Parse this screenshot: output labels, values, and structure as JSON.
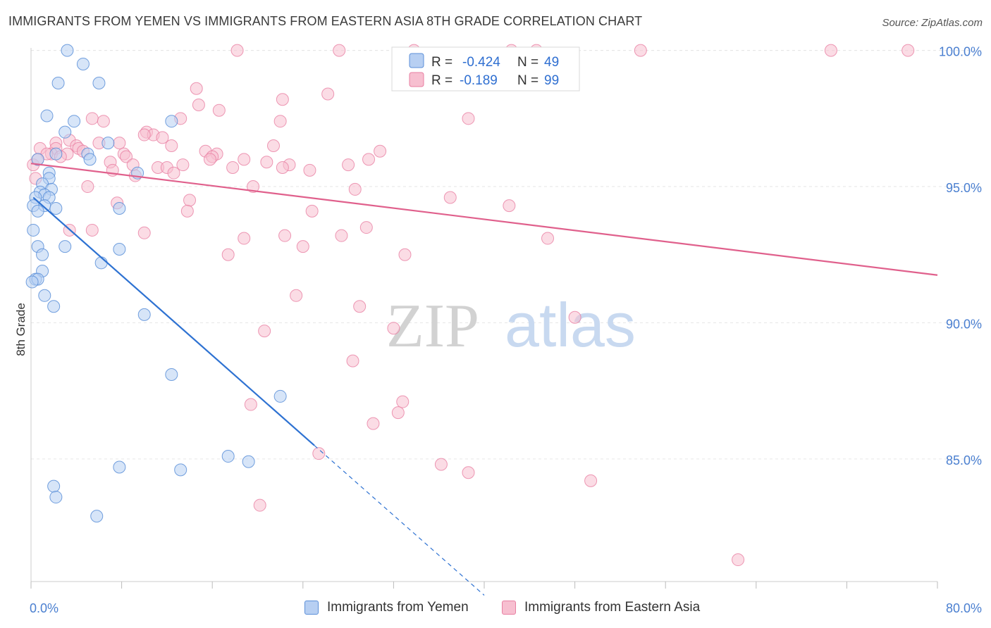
{
  "title": "IMMIGRANTS FROM YEMEN VS IMMIGRANTS FROM EASTERN ASIA 8TH GRADE CORRELATION CHART",
  "source": "Source: ZipAtlas.com",
  "watermark": {
    "zip": "ZIP",
    "atlas": "atlas"
  },
  "colors": {
    "yemen_fill": "#b7cff2",
    "yemen_stroke": "#5b8fd8",
    "yemen_line": "#2e72d2",
    "asia_fill": "#f7bfd0",
    "asia_stroke": "#e87fa2",
    "asia_line": "#e0608c",
    "axis_label": "#4a7fd0",
    "grid": "#e6e6e6"
  },
  "legend_top": {
    "rows": [
      {
        "r_label": "R =",
        "r_value": "-0.424",
        "n_label": "N =",
        "n_value": "49"
      },
      {
        "r_label": "R =",
        "r_value": "-0.189",
        "n_label": "N =",
        "n_value": "99"
      }
    ]
  },
  "legend_bottom": {
    "yemen": "Immigrants from Yemen",
    "asia": "Immigrants from Eastern Asia"
  },
  "chart_data": {
    "type": "scatter",
    "xlabel": "",
    "ylabel": "8th Grade",
    "xlim": [
      0,
      80
    ],
    "ylim": [
      80.5,
      100.3
    ],
    "x_tick_labels": [
      "0.0%",
      "80.0%"
    ],
    "y_ticks": [
      85,
      90,
      95,
      100
    ],
    "y_tick_labels": [
      "85.0%",
      "90.0%",
      "95.0%",
      "100.0%"
    ],
    "grid": true,
    "legend_position": "top-center",
    "series": [
      {
        "name": "Immigrants from Yemen",
        "r": -0.424,
        "n": 49,
        "trend": {
          "x0": 0.2,
          "y0": 94.6,
          "x1": 25.0,
          "y1": 85.5,
          "dashed_to_x": 40.0
        },
        "points": [
          [
            3.2,
            100.0
          ],
          [
            4.6,
            99.5
          ],
          [
            2.4,
            98.8
          ],
          [
            6.0,
            98.8
          ],
          [
            1.4,
            97.6
          ],
          [
            12.4,
            97.4
          ],
          [
            3.8,
            97.4
          ],
          [
            3.0,
            97.0
          ],
          [
            6.8,
            96.6
          ],
          [
            5.0,
            96.2
          ],
          [
            2.2,
            96.2
          ],
          [
            5.2,
            96.0
          ],
          [
            0.6,
            96.0
          ],
          [
            9.4,
            95.5
          ],
          [
            1.6,
            95.5
          ],
          [
            1.6,
            95.3
          ],
          [
            1.0,
            95.1
          ],
          [
            1.8,
            94.9
          ],
          [
            0.8,
            94.8
          ],
          [
            1.2,
            94.7
          ],
          [
            1.6,
            94.6
          ],
          [
            0.4,
            94.6
          ],
          [
            0.2,
            94.3
          ],
          [
            1.2,
            94.3
          ],
          [
            2.2,
            94.2
          ],
          [
            7.8,
            94.2
          ],
          [
            0.6,
            94.1
          ],
          [
            0.2,
            93.4
          ],
          [
            3.0,
            92.8
          ],
          [
            0.6,
            92.8
          ],
          [
            7.8,
            92.7
          ],
          [
            1.0,
            92.5
          ],
          [
            6.2,
            92.2
          ],
          [
            1.0,
            91.9
          ],
          [
            0.4,
            91.6
          ],
          [
            0.6,
            91.6
          ],
          [
            1.2,
            91.0
          ],
          [
            2.0,
            90.6
          ],
          [
            10.0,
            90.3
          ],
          [
            12.4,
            88.1
          ],
          [
            22.0,
            87.3
          ],
          [
            17.4,
            85.1
          ],
          [
            19.2,
            84.9
          ],
          [
            7.8,
            84.7
          ],
          [
            13.2,
            84.6
          ],
          [
            2.0,
            84.0
          ],
          [
            2.2,
            83.6
          ],
          [
            5.8,
            82.9
          ],
          [
            0.1,
            91.5
          ]
        ]
      },
      {
        "name": "Immigrants from Eastern Asia",
        "r": -0.189,
        "n": 99,
        "trend": {
          "x0": 0.0,
          "y0": 95.85,
          "x1": 80.0,
          "y1": 91.75
        },
        "points": [
          [
            18.2,
            100.0
          ],
          [
            27.2,
            100.0
          ],
          [
            33.8,
            100.0
          ],
          [
            42.4,
            100.0
          ],
          [
            44.6,
            100.0
          ],
          [
            53.8,
            100.0
          ],
          [
            70.6,
            100.0
          ],
          [
            77.4,
            100.0
          ],
          [
            14.6,
            98.6
          ],
          [
            26.2,
            98.4
          ],
          [
            22.2,
            98.2
          ],
          [
            14.8,
            98.0
          ],
          [
            16.6,
            97.8
          ],
          [
            38.6,
            97.5
          ],
          [
            5.4,
            97.5
          ],
          [
            13.2,
            97.5
          ],
          [
            6.4,
            97.4
          ],
          [
            22.0,
            97.4
          ],
          [
            10.2,
            97.0
          ],
          [
            10.8,
            96.9
          ],
          [
            10.0,
            96.9
          ],
          [
            11.6,
            96.8
          ],
          [
            3.4,
            96.7
          ],
          [
            2.2,
            96.6
          ],
          [
            7.8,
            96.6
          ],
          [
            6.0,
            96.6
          ],
          [
            4.0,
            96.5
          ],
          [
            21.4,
            96.5
          ],
          [
            12.4,
            96.5
          ],
          [
            2.2,
            96.4
          ],
          [
            0.8,
            96.4
          ],
          [
            4.2,
            96.4
          ],
          [
            4.6,
            96.3
          ],
          [
            15.4,
            96.3
          ],
          [
            30.8,
            96.3
          ],
          [
            1.8,
            96.2
          ],
          [
            8.2,
            96.2
          ],
          [
            16.4,
            96.2
          ],
          [
            3.2,
            96.2
          ],
          [
            1.4,
            96.2
          ],
          [
            16.0,
            96.1
          ],
          [
            8.4,
            96.1
          ],
          [
            2.6,
            96.1
          ],
          [
            29.8,
            96.0
          ],
          [
            15.8,
            96.0
          ],
          [
            18.8,
            96.0
          ],
          [
            7.0,
            95.9
          ],
          [
            20.8,
            95.9
          ],
          [
            9.0,
            95.8
          ],
          [
            22.8,
            95.8
          ],
          [
            0.2,
            95.8
          ],
          [
            13.4,
            95.8
          ],
          [
            28.0,
            95.8
          ],
          [
            11.2,
            95.7
          ],
          [
            17.8,
            95.7
          ],
          [
            12.0,
            95.7
          ],
          [
            22.2,
            95.7
          ],
          [
            24.6,
            95.6
          ],
          [
            7.2,
            95.6
          ],
          [
            12.6,
            95.5
          ],
          [
            9.2,
            95.4
          ],
          [
            0.4,
            95.3
          ],
          [
            19.6,
            95.0
          ],
          [
            5.0,
            95.0
          ],
          [
            28.6,
            94.9
          ],
          [
            37.0,
            94.6
          ],
          [
            14.0,
            94.5
          ],
          [
            42.2,
            94.3
          ],
          [
            7.6,
            94.4
          ],
          [
            13.8,
            94.1
          ],
          [
            24.8,
            94.1
          ],
          [
            29.6,
            93.5
          ],
          [
            5.4,
            93.4
          ],
          [
            3.4,
            93.4
          ],
          [
            10.0,
            93.3
          ],
          [
            22.4,
            93.2
          ],
          [
            27.4,
            93.2
          ],
          [
            18.8,
            93.1
          ],
          [
            45.6,
            93.1
          ],
          [
            24.0,
            92.8
          ],
          [
            33.0,
            92.5
          ],
          [
            17.4,
            92.5
          ],
          [
            23.4,
            91.0
          ],
          [
            29.0,
            90.6
          ],
          [
            48.0,
            90.2
          ],
          [
            32.0,
            89.8
          ],
          [
            20.6,
            89.7
          ],
          [
            28.4,
            88.6
          ],
          [
            32.8,
            87.1
          ],
          [
            19.4,
            87.0
          ],
          [
            32.4,
            86.7
          ],
          [
            30.2,
            86.3
          ],
          [
            25.4,
            85.2
          ],
          [
            36.2,
            84.8
          ],
          [
            38.6,
            84.5
          ],
          [
            49.4,
            84.2
          ],
          [
            20.2,
            83.3
          ],
          [
            62.4,
            81.3
          ],
          [
            0.6,
            96.0
          ]
        ]
      }
    ]
  }
}
